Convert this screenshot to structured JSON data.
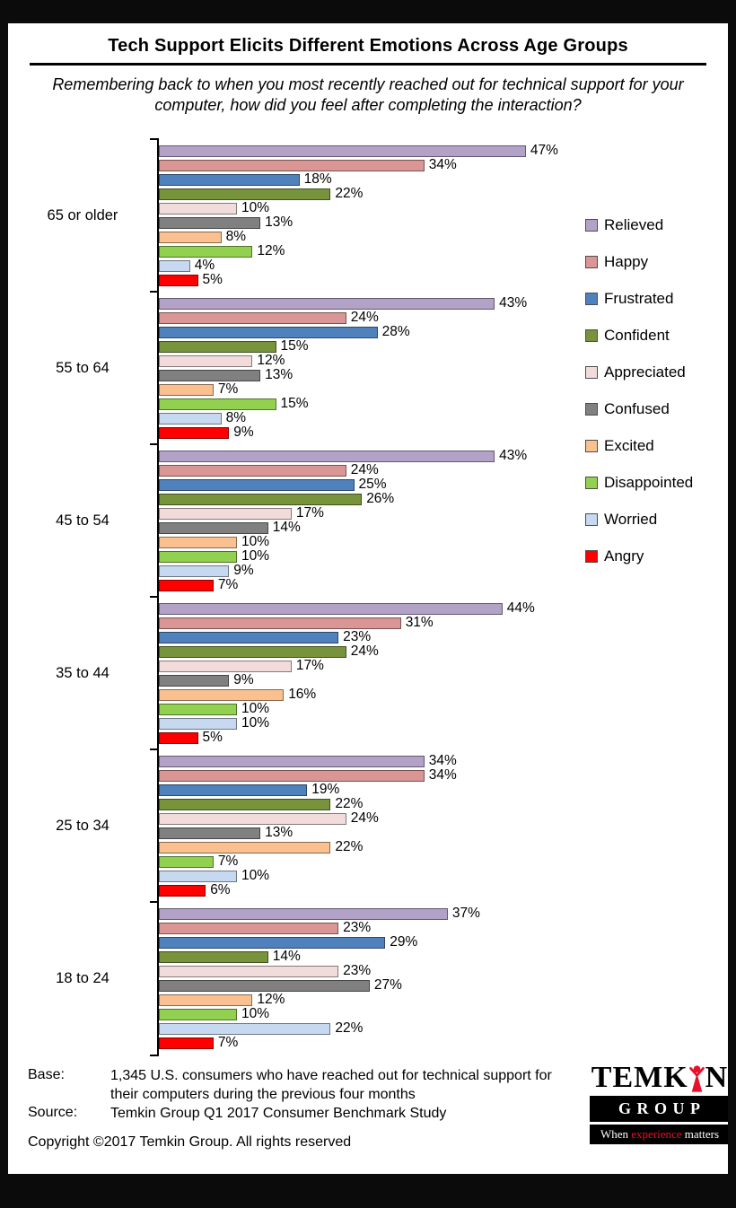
{
  "chart_data": {
    "type": "bar",
    "orientation": "horizontal",
    "title": "Tech Support Elicits Different Emotions Across Age Groups",
    "subtitle": "Remembering back to when you most recently reached out for technical support for your computer, how did you feel after completing the interaction?",
    "value_suffix": "%",
    "xlim": [
      0,
      50
    ],
    "grid": false,
    "data_labels": true,
    "legend_position": "right",
    "categories": [
      "65 or older",
      "55 to 64",
      "45 to 54",
      "35 to 44",
      "25 to 34",
      "18 to 24"
    ],
    "series": [
      {
        "name": "Relieved",
        "color": "#B3A2C7",
        "values": [
          47,
          43,
          43,
          44,
          34,
          37
        ]
      },
      {
        "name": "Happy",
        "color": "#D99694",
        "values": [
          34,
          24,
          24,
          31,
          34,
          23
        ]
      },
      {
        "name": "Frustrated",
        "color": "#4F81BD",
        "values": [
          18,
          28,
          25,
          23,
          19,
          29
        ]
      },
      {
        "name": "Confident",
        "color": "#77933C",
        "values": [
          22,
          15,
          26,
          24,
          22,
          14
        ]
      },
      {
        "name": "Appreciated",
        "color": "#F2DCDB",
        "values": [
          10,
          12,
          17,
          17,
          24,
          23
        ]
      },
      {
        "name": "Confused",
        "color": "#808080",
        "values": [
          13,
          13,
          14,
          9,
          13,
          27
        ]
      },
      {
        "name": "Excited",
        "color": "#FAC090",
        "values": [
          8,
          7,
          10,
          16,
          22,
          12
        ]
      },
      {
        "name": "Disappointed",
        "color": "#92D050",
        "values": [
          12,
          15,
          10,
          10,
          7,
          10
        ]
      },
      {
        "name": "Worried",
        "color": "#C6D9F0",
        "values": [
          4,
          8,
          9,
          10,
          10,
          22
        ]
      },
      {
        "name": "Angry",
        "color": "#FF0000",
        "values": [
          5,
          9,
          7,
          5,
          6,
          7
        ]
      }
    ]
  },
  "footer": {
    "base_label": "Base:",
    "base_text": "1,345 U.S. consumers who have reached out for technical support for their computers during the previous four months",
    "source_label": "Source:",
    "source_text": "Temkin Group Q1 2017 Consumer Benchmark Study",
    "copyright": "Copyright ©2017 Temkin Group. All rights reserved"
  },
  "logo": {
    "brand_left": "TEMK",
    "brand_right": "N",
    "group_text": "G R O U P",
    "tagline_pre": "When ",
    "tagline_em": "experience",
    "tagline_post": " matters",
    "accent_color": "#E8112D"
  }
}
